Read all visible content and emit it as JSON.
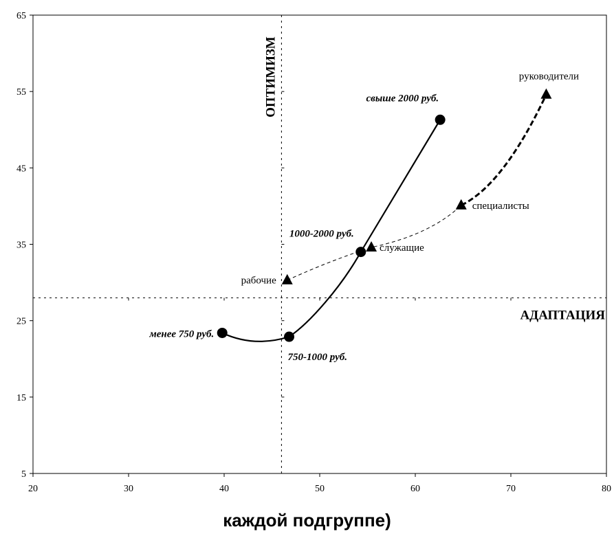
{
  "chart_data": {
    "type": "line",
    "xlim": [
      20,
      80
    ],
    "ylim": [
      5,
      65
    ],
    "x_ticks": [
      20,
      30,
      40,
      50,
      60,
      70,
      80
    ],
    "y_ticks": [
      5,
      15,
      25,
      35,
      45,
      55,
      65
    ],
    "grid": false,
    "reference_lines": {
      "vertical_x": 46,
      "horizontal_y": 28,
      "vertical_label": "ОПТИМИЗМ",
      "horizontal_label": "АДАПТАЦИЯ"
    },
    "series": [
      {
        "marker": "circle",
        "line_style": "solid",
        "points": [
          {
            "label": "менее 750 руб.",
            "x": 39.8,
            "y": 23.4
          },
          {
            "label": "750-1000 руб.",
            "x": 46.8,
            "y": 22.9
          },
          {
            "label": "1000-2000 руб.",
            "x": 54.3,
            "y": 34.0
          },
          {
            "label": "свыше 2000 руб.",
            "x": 62.6,
            "y": 51.3
          }
        ]
      },
      {
        "marker": "triangle",
        "line_style": "dashed",
        "points": [
          {
            "label": "рабочие",
            "x": 46.6,
            "y": 30.3
          },
          {
            "label": "служащие",
            "x": 55.4,
            "y": 34.6
          },
          {
            "label": "специалисты",
            "x": 64.8,
            "y": 40.1
          },
          {
            "label": "руководители",
            "x": 73.7,
            "y": 54.6
          }
        ]
      }
    ]
  },
  "bottom_title": "каждой подгруппе)"
}
